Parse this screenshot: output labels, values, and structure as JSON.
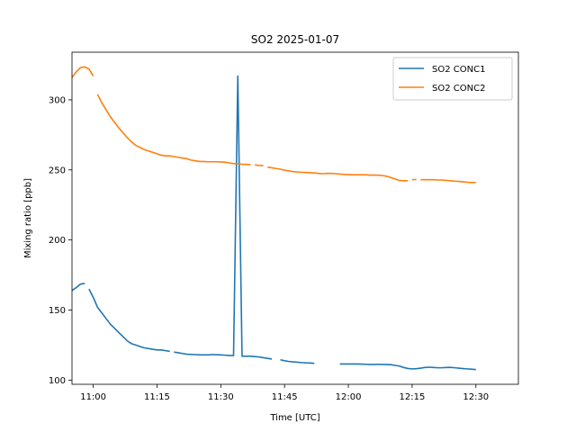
{
  "chart_data": {
    "type": "line",
    "title": "SO2 2025-01-07",
    "xlabel": "Time [UTC]",
    "ylabel": "Mixing ratio [ppb]",
    "x_unit": "HH:MM UTC",
    "xlim": [
      "10:55",
      "12:40"
    ],
    "ylim": [
      97,
      334
    ],
    "x_ticks": [
      "11:00",
      "11:15",
      "11:30",
      "11:45",
      "12:00",
      "12:15",
      "12:30"
    ],
    "y_ticks": [
      100,
      150,
      200,
      250,
      300
    ],
    "legend_position": "top-right",
    "grid": false,
    "series": [
      {
        "name": "SO2 CONC1",
        "color": "#1f77b4",
        "points": [
          [
            "10:55",
            164
          ],
          [
            "10:56",
            166
          ],
          [
            "10:57",
            168.5
          ],
          [
            "10:58",
            169
          ],
          null,
          [
            "10:59",
            165
          ],
          [
            "11:00",
            159
          ],
          [
            "11:01",
            152
          ],
          [
            "11:02",
            148
          ],
          [
            "11:03",
            144
          ],
          [
            "11:04",
            140
          ],
          [
            "11:05",
            137
          ],
          [
            "11:06",
            134
          ],
          [
            "11:07",
            131
          ],
          [
            "11:08",
            128
          ],
          [
            "11:09",
            126
          ],
          [
            "11:10",
            125
          ],
          [
            "11:11",
            124
          ],
          [
            "11:12",
            123
          ],
          [
            "11:13",
            122.5
          ],
          [
            "11:14",
            122
          ],
          [
            "11:15",
            121.5
          ],
          [
            "11:16",
            121.5
          ],
          [
            "11:17",
            121
          ],
          [
            "11:18",
            120.5
          ],
          null,
          [
            "11:19",
            120
          ],
          [
            "11:20",
            119.5
          ],
          [
            "11:21",
            119
          ],
          [
            "11:22",
            118.5
          ],
          [
            "11:23",
            118.3
          ],
          [
            "11:24",
            118.2
          ],
          [
            "11:25",
            118
          ],
          [
            "11:26",
            118
          ],
          [
            "11:27",
            118
          ],
          [
            "11:28",
            118.2
          ],
          [
            "11:29",
            118.1
          ],
          [
            "11:30",
            118
          ],
          [
            "11:31",
            117.8
          ],
          [
            "11:32",
            117.5
          ],
          [
            "11:33",
            117.5
          ],
          [
            "11:34",
            317
          ],
          [
            "11:35",
            117
          ],
          [
            "11:36",
            117
          ],
          [
            "11:37",
            117
          ],
          [
            "11:38",
            116.8
          ],
          [
            "11:39",
            116.5
          ],
          [
            "11:40",
            116
          ],
          [
            "11:41",
            115.5
          ],
          [
            "11:42",
            115
          ],
          null,
          [
            "11:44",
            114.5
          ],
          [
            "11:45",
            113.8
          ],
          [
            "11:46",
            113.3
          ],
          [
            "11:47",
            113
          ],
          [
            "11:48",
            112.8
          ],
          [
            "11:49",
            112.5
          ],
          [
            "11:50",
            112.3
          ],
          [
            "11:51",
            112.2
          ],
          [
            "11:52",
            112
          ],
          null,
          [
            "11:55",
            111.8
          ],
          null,
          [
            "11:58",
            111.5
          ],
          [
            "11:59",
            111.5
          ],
          [
            "12:00",
            111.5
          ],
          [
            "12:01",
            111.5
          ],
          [
            "12:02",
            111.5
          ],
          [
            "12:03",
            111.4
          ],
          [
            "12:04",
            111.3
          ],
          [
            "12:05",
            111.2
          ],
          [
            "12:06",
            111.2
          ],
          [
            "12:07",
            111.3
          ],
          [
            "12:08",
            111.2
          ],
          [
            "12:09",
            111.1
          ],
          [
            "12:10",
            111
          ],
          [
            "12:11",
            110.5
          ],
          [
            "12:12",
            110
          ],
          [
            "12:13",
            109
          ],
          [
            "12:14",
            108.3
          ],
          [
            "12:15",
            108
          ],
          [
            "12:16",
            108.1
          ],
          [
            "12:17",
            108.5
          ],
          [
            "12:18",
            109
          ],
          [
            "12:19",
            109.2
          ],
          [
            "12:20",
            109
          ],
          [
            "12:21",
            108.8
          ],
          [
            "12:22",
            108.8
          ],
          [
            "12:23",
            109
          ],
          [
            "12:24",
            109.1
          ],
          [
            "12:25",
            108.8
          ],
          [
            "12:26",
            108.5
          ],
          [
            "12:27",
            108.2
          ],
          [
            "12:28",
            108
          ],
          [
            "12:29",
            107.8
          ],
          [
            "12:30",
            107.5
          ]
        ]
      },
      {
        "name": "SO2 CONC2",
        "color": "#ff7f0e",
        "points": [
          [
            "10:55",
            316
          ],
          [
            "10:56",
            320
          ],
          [
            "10:57",
            323
          ],
          [
            "10:58",
            323.5
          ],
          [
            "10:59",
            322
          ],
          [
            "11:00",
            317
          ],
          null,
          [
            "11:01",
            304
          ],
          [
            "11:02",
            298
          ],
          [
            "11:03",
            293
          ],
          [
            "11:04",
            288
          ],
          [
            "11:05",
            284
          ],
          [
            "11:06",
            280
          ],
          [
            "11:07",
            276.5
          ],
          [
            "11:08",
            273
          ],
          [
            "11:09",
            270
          ],
          [
            "11:10",
            267.5
          ],
          [
            "11:11",
            266
          ],
          [
            "11:12",
            264.5
          ],
          [
            "11:13",
            263.5
          ],
          [
            "11:14",
            262.5
          ],
          [
            "11:15",
            261.5
          ],
          [
            "11:16",
            260.5
          ],
          [
            "11:17",
            260
          ],
          [
            "11:18",
            260
          ],
          [
            "11:19",
            259.5
          ],
          [
            "11:20",
            259
          ],
          [
            "11:21",
            258.5
          ],
          [
            "11:22",
            258
          ],
          [
            "11:23",
            257
          ],
          [
            "11:24",
            256.5
          ],
          [
            "11:25",
            256
          ],
          [
            "11:26",
            256
          ],
          [
            "11:27",
            255.8
          ],
          [
            "11:28",
            255.8
          ],
          [
            "11:29",
            255.8
          ],
          [
            "11:30",
            255.7
          ],
          [
            "11:31",
            255.5
          ],
          [
            "11:32",
            255
          ],
          [
            "11:33",
            254.5
          ],
          [
            "11:34",
            254.5
          ],
          [
            "11:35",
            254
          ],
          [
            "11:36",
            254
          ],
          [
            "11:37",
            253.7
          ],
          null,
          [
            "11:38",
            253.5
          ],
          [
            "11:39",
            253.2
          ],
          [
            "11:40",
            253
          ],
          null,
          [
            "11:41",
            252
          ],
          [
            "11:42",
            251.5
          ],
          [
            "11:43",
            251
          ],
          [
            "11:44",
            250.5
          ],
          [
            "11:45",
            249.8
          ],
          [
            "11:46",
            249.3
          ],
          [
            "11:47",
            248.8
          ],
          [
            "11:48",
            248.5
          ],
          [
            "11:49",
            248.3
          ],
          [
            "11:50",
            248.2
          ],
          [
            "11:51",
            248
          ],
          [
            "11:52",
            247.8
          ],
          [
            "11:53",
            247.5
          ],
          [
            "11:54",
            247.3
          ],
          [
            "11:55",
            247.5
          ],
          [
            "11:56",
            247.5
          ],
          [
            "11:57",
            247.3
          ],
          [
            "11:58",
            247
          ],
          [
            "11:59",
            246.8
          ],
          [
            "12:00",
            246.5
          ],
          [
            "12:01",
            246.5
          ],
          [
            "12:02",
            246.5
          ],
          [
            "12:03",
            246.5
          ],
          [
            "12:04",
            246.5
          ],
          [
            "12:05",
            246.3
          ],
          [
            "12:06",
            246.3
          ],
          [
            "12:07",
            246.2
          ],
          [
            "12:08",
            246
          ],
          [
            "12:09",
            245.5
          ],
          [
            "12:10",
            244.5
          ],
          [
            "12:11",
            243.5
          ],
          [
            "12:12",
            242.5
          ],
          [
            "12:13",
            242.2
          ],
          [
            "12:14",
            242.3
          ],
          null,
          [
            "12:15",
            243
          ],
          [
            "12:16",
            243.2
          ],
          null,
          [
            "12:17",
            243
          ],
          [
            "12:18",
            243
          ],
          [
            "12:19",
            243
          ],
          [
            "12:20",
            243
          ],
          [
            "12:21",
            242.8
          ],
          [
            "12:22",
            242.8
          ],
          [
            "12:23",
            242.5
          ],
          [
            "12:24",
            242.3
          ],
          [
            "12:25",
            242
          ],
          [
            "12:26",
            241.8
          ],
          [
            "12:27",
            241.5
          ],
          [
            "12:28",
            241.2
          ],
          [
            "12:29",
            241
          ],
          [
            "12:30",
            241
          ]
        ]
      }
    ]
  }
}
